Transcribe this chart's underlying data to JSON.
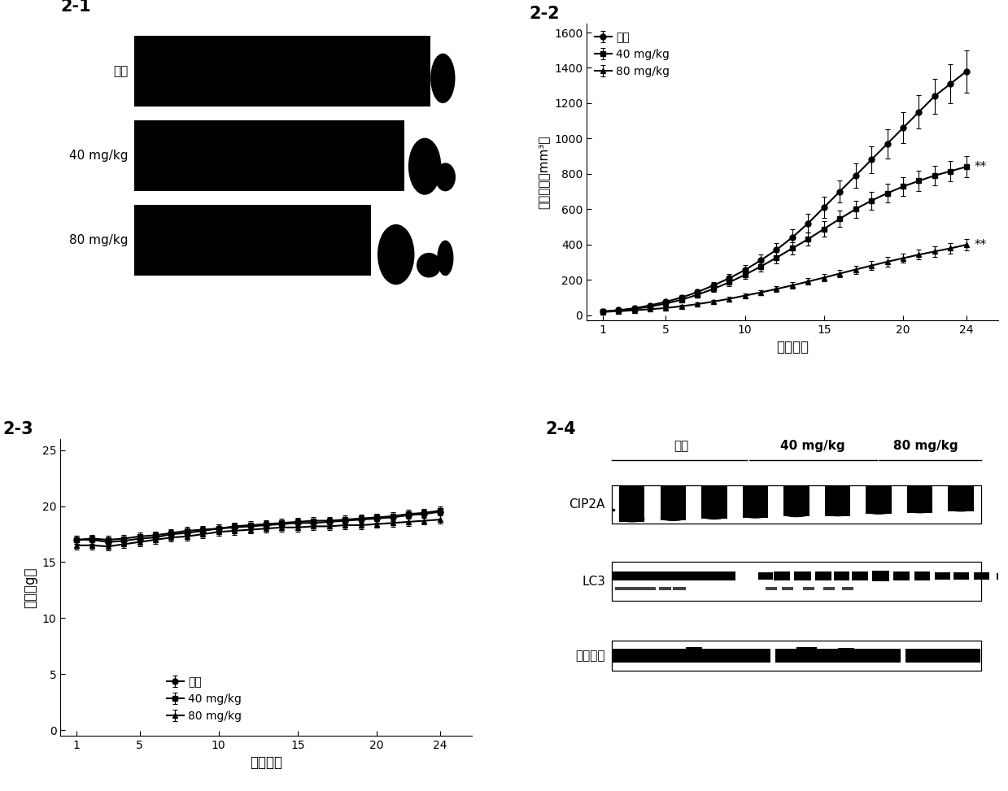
{
  "panel_labels": [
    "2-1",
    "2-2",
    "2-3",
    "2-4"
  ],
  "panel22": {
    "title": "2-2",
    "xlabel": "治疗天数",
    "ylabel": "肿瘤体积（mm³）",
    "xticks": [
      1,
      5,
      10,
      15,
      20,
      24
    ],
    "yticks": [
      0,
      200,
      400,
      600,
      800,
      1000,
      1200,
      1400,
      1600
    ],
    "ylim": [
      -30,
      1650
    ],
    "xlim": [
      0,
      26
    ],
    "legend": [
      "对照",
      "40 mg/kg",
      "80 mg/kg"
    ],
    "control_x": [
      1,
      2,
      3,
      4,
      5,
      6,
      7,
      8,
      9,
      10,
      11,
      12,
      13,
      14,
      15,
      16,
      17,
      18,
      19,
      20,
      21,
      22,
      23,
      24
    ],
    "control_y": [
      20,
      28,
      38,
      55,
      75,
      100,
      130,
      168,
      208,
      255,
      310,
      370,
      440,
      520,
      610,
      700,
      790,
      880,
      970,
      1060,
      1150,
      1240,
      1310,
      1380
    ],
    "control_err": [
      5,
      6,
      7,
      9,
      11,
      14,
      17,
      21,
      25,
      30,
      35,
      40,
      46,
      52,
      58,
      64,
      70,
      76,
      82,
      88,
      94,
      100,
      110,
      120
    ],
    "dose40_x": [
      1,
      2,
      3,
      4,
      5,
      6,
      7,
      8,
      9,
      10,
      11,
      12,
      13,
      14,
      15,
      16,
      17,
      18,
      19,
      20,
      21,
      22,
      23,
      24
    ],
    "dose40_y": [
      20,
      26,
      35,
      48,
      65,
      87,
      115,
      148,
      185,
      228,
      275,
      325,
      378,
      430,
      488,
      545,
      600,
      648,
      690,
      728,
      760,
      790,
      815,
      840
    ],
    "dose40_err": [
      5,
      6,
      7,
      8,
      10,
      12,
      15,
      18,
      21,
      25,
      28,
      32,
      35,
      38,
      42,
      45,
      48,
      50,
      52,
      54,
      56,
      57,
      58,
      60
    ],
    "dose80_x": [
      1,
      2,
      3,
      4,
      5,
      6,
      7,
      8,
      9,
      10,
      11,
      12,
      13,
      14,
      15,
      16,
      17,
      18,
      19,
      20,
      21,
      22,
      23,
      24
    ],
    "dose80_y": [
      18,
      22,
      27,
      33,
      40,
      50,
      62,
      76,
      92,
      110,
      128,
      148,
      168,
      190,
      212,
      235,
      258,
      280,
      302,
      322,
      342,
      360,
      378,
      398
    ],
    "dose80_err": [
      4,
      5,
      5,
      6,
      7,
      8,
      9,
      10,
      11,
      13,
      14,
      16,
      17,
      19,
      20,
      22,
      23,
      25,
      26,
      27,
      28,
      29,
      30,
      32
    ]
  },
  "panel23": {
    "title": "2-3",
    "xlabel": "治疗天数",
    "ylabel": "体重（g）",
    "xticks": [
      1,
      5,
      10,
      15,
      20,
      24
    ],
    "yticks": [
      0,
      5,
      10,
      15,
      20,
      25
    ],
    "ylim": [
      -0.5,
      26
    ],
    "xlim": [
      0,
      26
    ],
    "legend": [
      "对照",
      "40 mg/kg",
      "80 mg/kg"
    ],
    "control_x": [
      1,
      2,
      3,
      4,
      5,
      6,
      7,
      8,
      9,
      10,
      11,
      12,
      13,
      14,
      15,
      16,
      17,
      18,
      19,
      20,
      21,
      22,
      23,
      24
    ],
    "control_y": [
      17.0,
      17.0,
      16.8,
      16.9,
      17.1,
      17.2,
      17.5,
      17.6,
      17.8,
      18.0,
      18.1,
      18.2,
      18.3,
      18.4,
      18.5,
      18.5,
      18.6,
      18.7,
      18.8,
      18.9,
      19.0,
      19.2,
      19.3,
      19.5
    ],
    "control_err": [
      0.35,
      0.35,
      0.35,
      0.35,
      0.35,
      0.35,
      0.35,
      0.35,
      0.35,
      0.35,
      0.35,
      0.35,
      0.35,
      0.35,
      0.35,
      0.35,
      0.35,
      0.35,
      0.35,
      0.35,
      0.35,
      0.35,
      0.35,
      0.35
    ],
    "dose40_x": [
      1,
      2,
      3,
      4,
      5,
      6,
      7,
      8,
      9,
      10,
      11,
      12,
      13,
      14,
      15,
      16,
      17,
      18,
      19,
      20,
      21,
      22,
      23,
      24
    ],
    "dose40_y": [
      17.0,
      17.1,
      17.0,
      17.1,
      17.3,
      17.4,
      17.6,
      17.8,
      17.9,
      18.0,
      18.2,
      18.3,
      18.4,
      18.5,
      18.6,
      18.7,
      18.7,
      18.8,
      18.9,
      19.0,
      19.1,
      19.3,
      19.4,
      19.6
    ],
    "dose40_err": [
      0.35,
      0.35,
      0.35,
      0.35,
      0.35,
      0.35,
      0.35,
      0.35,
      0.35,
      0.35,
      0.35,
      0.35,
      0.35,
      0.35,
      0.35,
      0.35,
      0.35,
      0.35,
      0.35,
      0.35,
      0.35,
      0.35,
      0.35,
      0.35
    ],
    "dose80_x": [
      1,
      2,
      3,
      4,
      5,
      6,
      7,
      8,
      9,
      10,
      11,
      12,
      13,
      14,
      15,
      16,
      17,
      18,
      19,
      20,
      21,
      22,
      23,
      24
    ],
    "dose80_y": [
      16.5,
      16.5,
      16.4,
      16.6,
      16.8,
      17.0,
      17.2,
      17.3,
      17.5,
      17.7,
      17.8,
      17.9,
      18.0,
      18.1,
      18.1,
      18.2,
      18.2,
      18.3,
      18.3,
      18.4,
      18.5,
      18.6,
      18.7,
      18.8
    ],
    "dose80_err": [
      0.35,
      0.35,
      0.35,
      0.35,
      0.35,
      0.35,
      0.35,
      0.35,
      0.35,
      0.35,
      0.35,
      0.35,
      0.35,
      0.35,
      0.35,
      0.35,
      0.35,
      0.35,
      0.35,
      0.35,
      0.35,
      0.35,
      0.35,
      0.35
    ]
  },
  "panel24": {
    "title": "2-4",
    "group_labels": [
      "对照",
      "40 mg/kg",
      "80 mg/kg"
    ],
    "protein_labels": [
      "CIP2A",
      "LC3",
      "肌动蛋白"
    ],
    "n_lanes": 9
  },
  "panel21": {
    "labels": [
      "对照",
      "40 mg/kg",
      "80 mg/kg"
    ]
  },
  "colors": {
    "line_width": 1.5,
    "marker_size": 5
  }
}
